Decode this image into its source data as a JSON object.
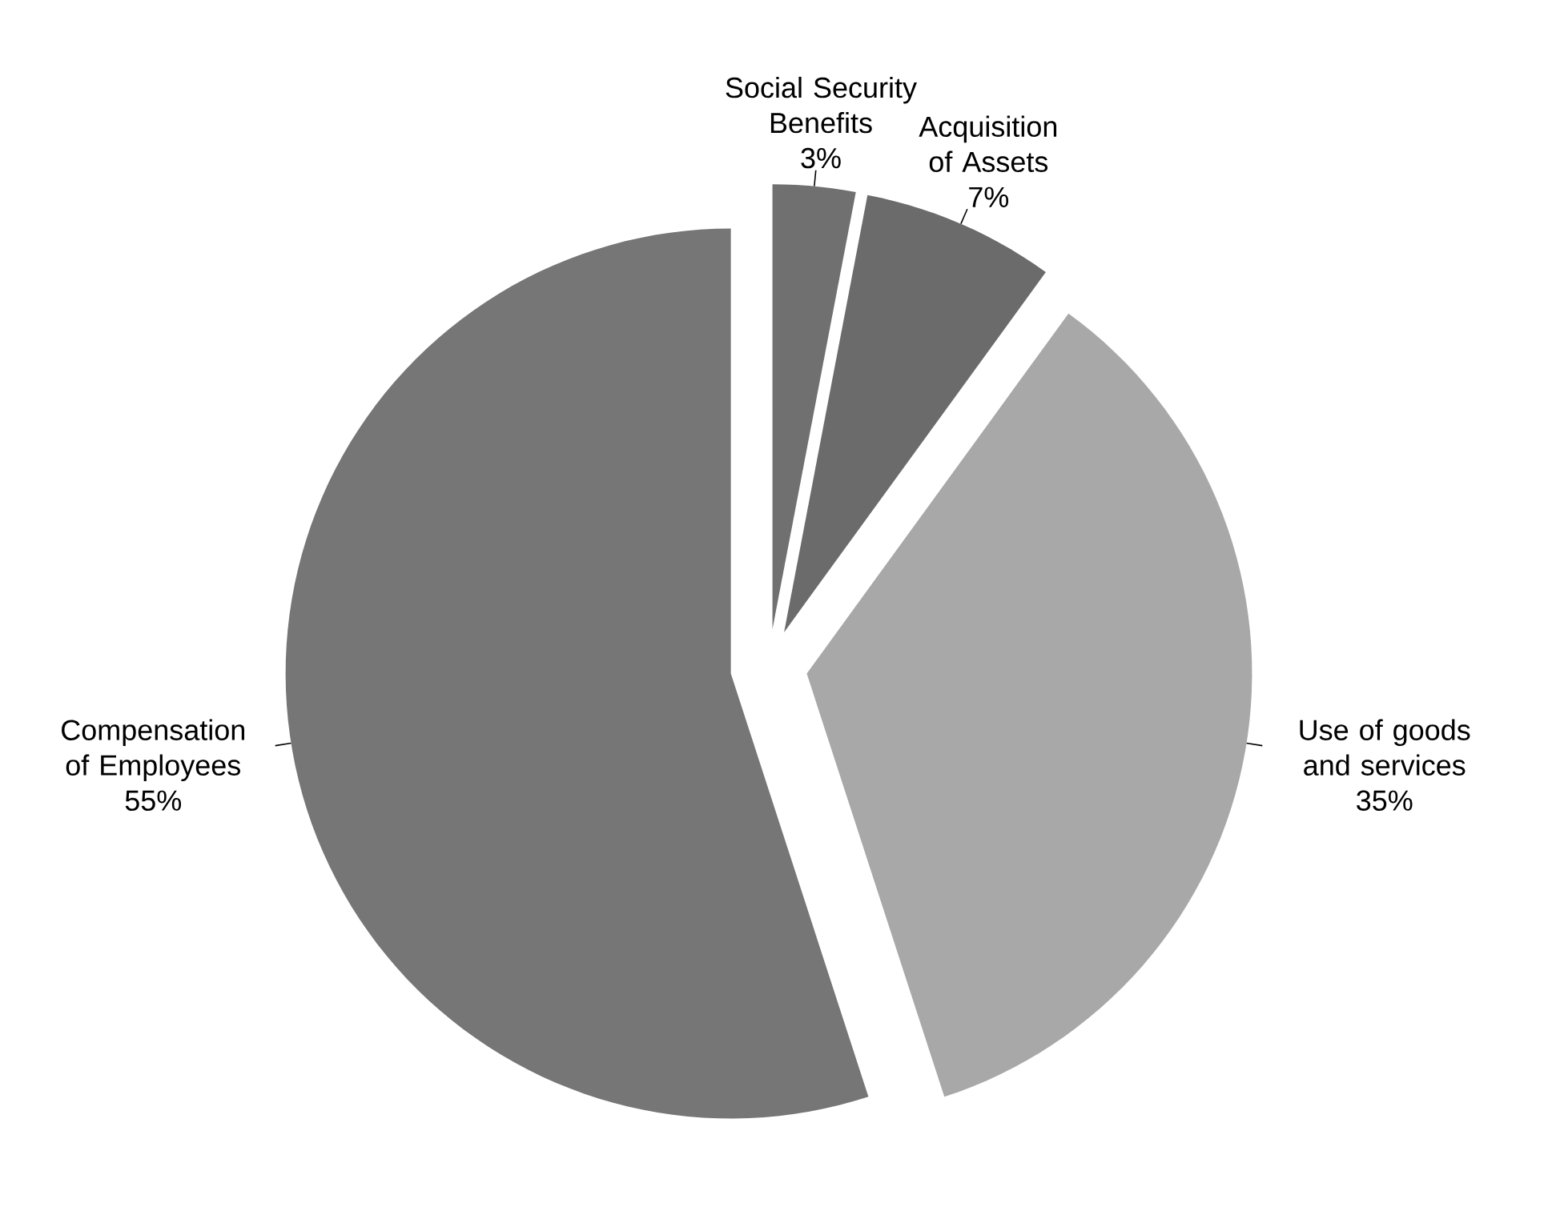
{
  "chart_data": {
    "type": "pie",
    "categories": [
      "Social Security Benefits",
      "Acquisition of Assets",
      "Use of goods and services",
      "Compensation of Employees"
    ],
    "values": [
      3,
      7,
      35,
      55
    ],
    "colors": [
      "#707070",
      "#6b6b6b",
      "#a8a8a8",
      "#767676"
    ],
    "value_labels": [
      "3%",
      "7%",
      "35%",
      "55%"
    ]
  }
}
